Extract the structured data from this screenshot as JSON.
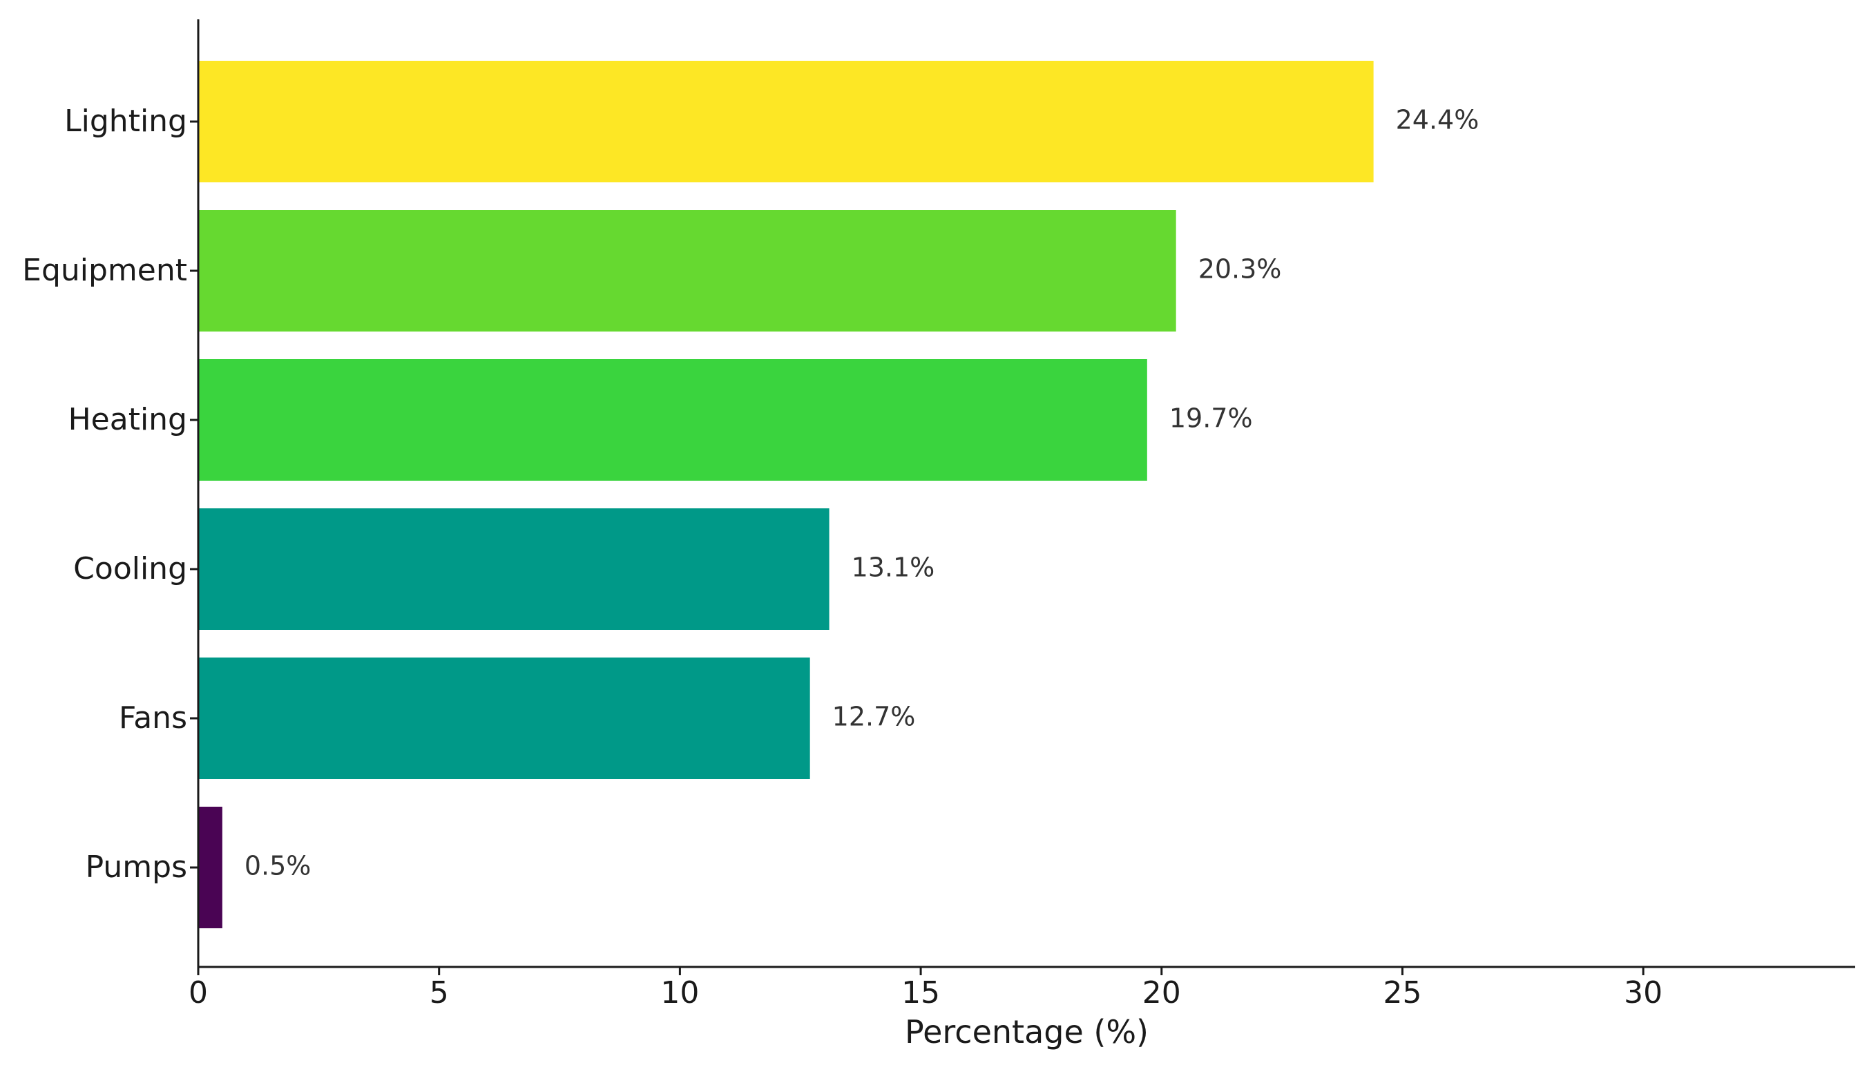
{
  "chart_data": {
    "type": "bar",
    "orientation": "horizontal",
    "categories": [
      "Lighting",
      "Equipment",
      "Heating",
      "Cooling",
      "Fans",
      "Pumps"
    ],
    "values": [
      24.4,
      20.3,
      19.7,
      13.1,
      12.7,
      0.5
    ],
    "value_labels": [
      "24.4%",
      "20.3%",
      "19.7%",
      "13.1%",
      "12.7%",
      "0.5%"
    ],
    "colors": [
      "#fde725",
      "#66d930",
      "#3ad43e",
      "#009988",
      "#009988",
      "#4a0454"
    ],
    "xlabel": "Percentage (%)",
    "ylabel": "",
    "title": "",
    "xlim": [
      0,
      34.4
    ],
    "x_ticks": [
      0,
      5,
      10,
      15,
      20,
      25,
      30
    ],
    "x_tick_labels": [
      "0",
      "5",
      "10",
      "15",
      "20",
      "25",
      "30"
    ],
    "grid": false,
    "legend": "none"
  }
}
